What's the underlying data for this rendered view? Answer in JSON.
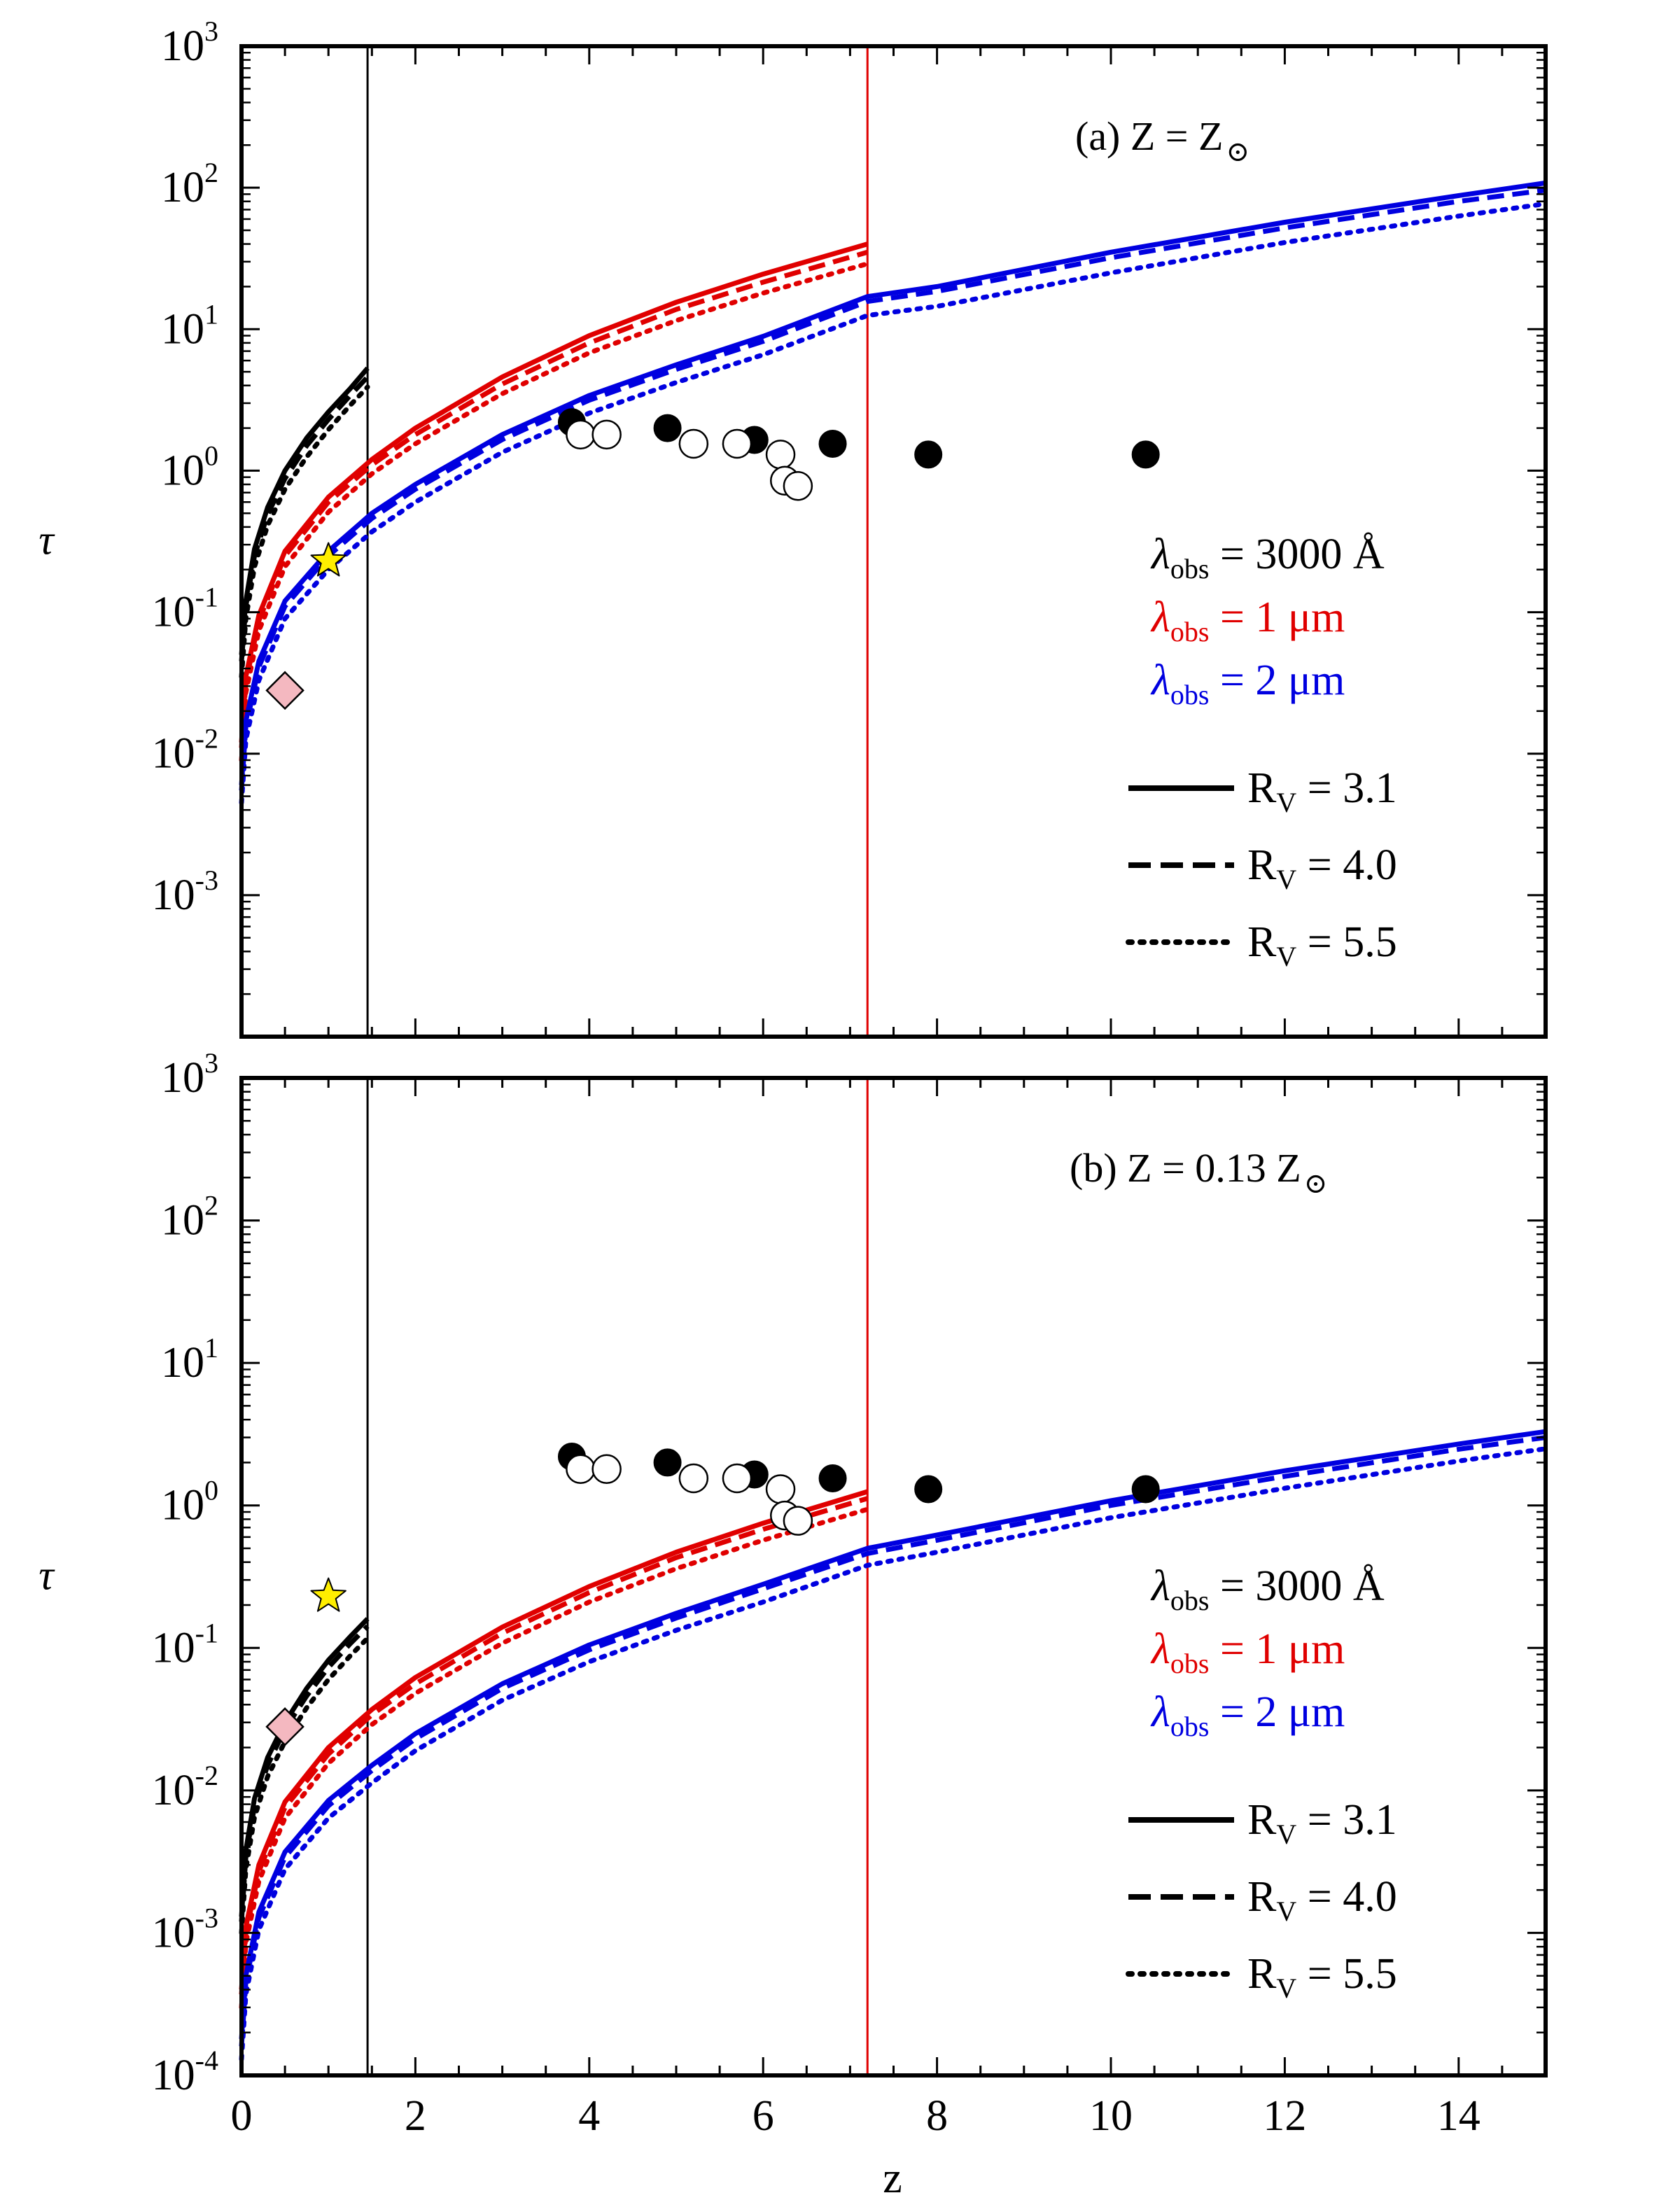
{
  "figure": {
    "xlabel": "z",
    "ylabel": "τ",
    "xlim": [
      0,
      15
    ],
    "ylim_top": [
      0.0001,
      1000
    ],
    "ylim_bottom": [
      0.0001,
      1000
    ],
    "x_ticks": [
      "0",
      "2",
      "4",
      "6",
      "8",
      "10",
      "12",
      "14"
    ],
    "y_exponents_top": [
      "-3",
      "-2",
      "-1",
      "0",
      "1",
      "2",
      "3"
    ],
    "y_exponents_bottom": [
      "-4",
      "-3",
      "-2",
      "-1",
      "0",
      "1",
      "2",
      "3"
    ],
    "tick_base": "10",
    "vlines": [
      {
        "x": 1.45,
        "color": "#000000"
      },
      {
        "x": 7.2,
        "color": "#e00000"
      }
    ]
  },
  "legend": {
    "wavelengths": [
      {
        "symbol": "λ",
        "sub": "obs",
        "value": "= 3000 Å",
        "color": "#000000"
      },
      {
        "symbol": "λ",
        "sub": "obs",
        "value": "= 1 μm",
        "color": "#e00000"
      },
      {
        "symbol": "λ",
        "sub": "obs",
        "value": "= 2 μm",
        "color": "#0000e0"
      }
    ],
    "rv": [
      {
        "label": "R",
        "sub": "V",
        "value": "= 3.1",
        "dash": "solid"
      },
      {
        "label": "R",
        "sub": "V",
        "value": "= 4.0",
        "dash": "dashed"
      },
      {
        "label": "R",
        "sub": "V",
        "value": "= 5.5",
        "dash": "dotted"
      }
    ]
  },
  "panels": [
    {
      "id": "a",
      "label_tag": "(a)",
      "label_eq": "Z = Z",
      "sun_symbol": "⊙"
    },
    {
      "id": "b",
      "label_tag": "(b)",
      "label_eq": "Z = 0.13 Z",
      "sun_symbol": "⊙"
    }
  ],
  "chart_data": [
    {
      "type": "line",
      "title": "(a) Z = Z⊙",
      "xlabel": "z",
      "ylabel": "τ",
      "xlim": [
        0,
        15
      ],
      "ylim": [
        0.0001,
        1000
      ],
      "yscale": "log",
      "series": [
        {
          "name": "λobs = 3000 Å, RV = 3.1",
          "color": "#000000",
          "dash": "solid",
          "x": [
            0,
            0.05,
            0.15,
            0.3,
            0.5,
            0.75,
            1.0,
            1.25,
            1.45
          ],
          "y": [
            0.05,
            0.12,
            0.28,
            0.55,
            1.0,
            1.7,
            2.6,
            3.8,
            5.3
          ]
        },
        {
          "name": "λobs = 3000 Å, RV = 4.0",
          "color": "#000000",
          "dash": "dashed",
          "x": [
            0,
            0.05,
            0.15,
            0.3,
            0.5,
            0.75,
            1.0,
            1.25,
            1.45
          ],
          "y": [
            0.045,
            0.11,
            0.25,
            0.49,
            0.88,
            1.5,
            2.3,
            3.4,
            4.6
          ]
        },
        {
          "name": "λobs = 3000 Å, RV = 5.5",
          "color": "#000000",
          "dash": "dotted",
          "x": [
            0,
            0.05,
            0.15,
            0.3,
            0.5,
            0.75,
            1.0,
            1.25,
            1.45
          ],
          "y": [
            0.035,
            0.09,
            0.21,
            0.41,
            0.74,
            1.25,
            1.95,
            2.9,
            3.9
          ]
        },
        {
          "name": "λobs = 1 μm, RV = 3.1",
          "color": "#e00000",
          "dash": "solid",
          "x": [
            0,
            0.05,
            0.2,
            0.5,
            1.0,
            1.5,
            2.0,
            3.0,
            4.0,
            5.0,
            6.0,
            7.2
          ],
          "y": [
            0.012,
            0.035,
            0.095,
            0.27,
            0.65,
            1.2,
            2.0,
            4.6,
            9.0,
            15.5,
            24.5,
            40
          ]
        },
        {
          "name": "λobs = 1 μm, RV = 4.0",
          "color": "#e00000",
          "dash": "dashed",
          "x": [
            0,
            0.05,
            0.2,
            0.5,
            1.0,
            1.5,
            2.0,
            3.0,
            4.0,
            5.0,
            6.0,
            7.2
          ],
          "y": [
            0.011,
            0.032,
            0.087,
            0.25,
            0.6,
            1.1,
            1.8,
            4.1,
            8.0,
            13.8,
            21.5,
            35
          ]
        },
        {
          "name": "λobs = 1 μm, RV = 5.5",
          "color": "#e00000",
          "dash": "dotted",
          "x": [
            0,
            0.05,
            0.2,
            0.5,
            1.0,
            1.5,
            2.0,
            3.0,
            4.0,
            5.0,
            6.0,
            7.2
          ],
          "y": [
            0.009,
            0.027,
            0.074,
            0.21,
            0.51,
            0.95,
            1.55,
            3.5,
            6.8,
            11.5,
            18.0,
            29
          ]
        },
        {
          "name": "λobs = 2 μm, RV = 3.1",
          "color": "#0000e0",
          "dash": "solid",
          "x": [
            0,
            0.05,
            0.2,
            0.5,
            1.0,
            1.5,
            2.0,
            3.0,
            4.0,
            5.0,
            6.0,
            7.2,
            8.0,
            10.0,
            12.0,
            14.0,
            15.0
          ],
          "y": [
            0.006,
            0.017,
            0.045,
            0.12,
            0.27,
            0.5,
            0.8,
            1.8,
            3.4,
            5.6,
            8.9,
            17,
            20,
            35,
            57,
            88,
            108
          ]
        },
        {
          "name": "λobs = 2 μm, RV = 4.0",
          "color": "#0000e0",
          "dash": "dashed",
          "x": [
            0,
            0.05,
            0.2,
            0.5,
            1.0,
            1.5,
            2.0,
            3.0,
            4.0,
            5.0,
            6.0,
            7.2,
            8.0,
            10.0,
            12.0,
            14.0,
            15.0
          ],
          "y": [
            0.0055,
            0.0155,
            0.041,
            0.11,
            0.25,
            0.46,
            0.74,
            1.66,
            3.15,
            5.2,
            8.2,
            15.7,
            18.5,
            32,
            52,
            80,
            96
          ]
        },
        {
          "name": "λobs = 2 μm, RV = 5.5",
          "color": "#0000e0",
          "dash": "dotted",
          "x": [
            0,
            0.05,
            0.2,
            0.5,
            1.0,
            1.5,
            2.0,
            3.0,
            4.0,
            5.0,
            6.0,
            7.2,
            8.0,
            10.0,
            12.0,
            14.0,
            15.0
          ],
          "y": [
            0.0045,
            0.0125,
            0.033,
            0.09,
            0.2,
            0.37,
            0.6,
            1.35,
            2.55,
            4.2,
            6.6,
            12.5,
            14.5,
            25,
            41,
            63,
            77
          ]
        }
      ],
      "points": {
        "filled_circles": [
          {
            "x": 3.8,
            "y": 2.2
          },
          {
            "x": 4.9,
            "y": 2.0
          },
          {
            "x": 5.9,
            "y": 1.65
          },
          {
            "x": 6.8,
            "y": 1.55
          },
          {
            "x": 7.9,
            "y": 1.3
          },
          {
            "x": 10.4,
            "y": 1.3
          }
        ],
        "open_circles": [
          {
            "x": 3.9,
            "y": 1.8
          },
          {
            "x": 4.2,
            "y": 1.8
          },
          {
            "x": 5.2,
            "y": 1.55
          },
          {
            "x": 5.7,
            "y": 1.55
          },
          {
            "x": 6.2,
            "y": 1.3
          },
          {
            "x": 6.25,
            "y": 0.85
          },
          {
            "x": 6.4,
            "y": 0.78
          }
        ],
        "star": {
          "x": 1.0,
          "y": 0.23,
          "color": "#ffee00"
        },
        "diamond": {
          "x": 0.5,
          "y": 0.028,
          "color": "#f4b8c0"
        }
      }
    },
    {
      "type": "line",
      "title": "(b) Z = 0.13 Z⊙",
      "xlabel": "z",
      "ylabel": "τ",
      "xlim": [
        0,
        15
      ],
      "ylim": [
        0.0001,
        1000
      ],
      "yscale": "log",
      "series": [
        {
          "name": "λobs = 3000 Å, RV = 3.1",
          "color": "#000000",
          "dash": "solid",
          "x": [
            0,
            0.05,
            0.15,
            0.3,
            0.5,
            0.75,
            1.0,
            1.25,
            1.45
          ],
          "y": [
            0.0013,
            0.0038,
            0.0088,
            0.017,
            0.03,
            0.052,
            0.082,
            0.12,
            0.16
          ]
        },
        {
          "name": "λobs = 3000 Å, RV = 4.0",
          "color": "#000000",
          "dash": "dashed",
          "x": [
            0,
            0.05,
            0.15,
            0.3,
            0.5,
            0.75,
            1.0,
            1.25,
            1.45
          ],
          "y": [
            0.0012,
            0.0034,
            0.0078,
            0.015,
            0.027,
            0.046,
            0.073,
            0.107,
            0.142
          ]
        },
        {
          "name": "λobs = 3000 Å, RV = 5.5",
          "color": "#000000",
          "dash": "dotted",
          "x": [
            0,
            0.05,
            0.15,
            0.3,
            0.5,
            0.75,
            1.0,
            1.25,
            1.45
          ],
          "y": [
            0.001,
            0.0028,
            0.0065,
            0.0125,
            0.022,
            0.038,
            0.06,
            0.088,
            0.117
          ]
        },
        {
          "name": "λobs = 1 μm, RV = 3.1",
          "color": "#e00000",
          "dash": "solid",
          "x": [
            0,
            0.05,
            0.2,
            0.5,
            1.0,
            1.5,
            2.0,
            3.0,
            4.0,
            5.0,
            6.0,
            7.2
          ],
          "y": [
            0.0004,
            0.0011,
            0.003,
            0.0083,
            0.02,
            0.037,
            0.062,
            0.14,
            0.27,
            0.47,
            0.75,
            1.25
          ]
        },
        {
          "name": "λobs = 1 μm, RV = 4.0",
          "color": "#e00000",
          "dash": "dashed",
          "x": [
            0,
            0.05,
            0.2,
            0.5,
            1.0,
            1.5,
            2.0,
            3.0,
            4.0,
            5.0,
            6.0,
            7.2
          ],
          "y": [
            0.00037,
            0.001,
            0.0027,
            0.0076,
            0.018,
            0.034,
            0.056,
            0.127,
            0.245,
            0.43,
            0.68,
            1.12
          ]
        },
        {
          "name": "λobs = 1 μm, RV = 5.5",
          "color": "#e00000",
          "dash": "dotted",
          "x": [
            0,
            0.05,
            0.2,
            0.5,
            1.0,
            1.5,
            2.0,
            3.0,
            4.0,
            5.0,
            6.0,
            7.2
          ],
          "y": [
            0.0003,
            0.00085,
            0.0023,
            0.0064,
            0.0155,
            0.029,
            0.048,
            0.108,
            0.21,
            0.36,
            0.57,
            0.94
          ]
        },
        {
          "name": "λobs = 2 μm, RV = 3.1",
          "color": "#0000e0",
          "dash": "solid",
          "x": [
            0,
            0.05,
            0.2,
            0.5,
            1.0,
            1.5,
            2.0,
            3.0,
            4.0,
            5.0,
            6.0,
            7.2,
            8.0,
            10.0,
            12.0,
            14.0,
            15.0
          ],
          "y": [
            0.00018,
            0.0005,
            0.0014,
            0.0037,
            0.0085,
            0.015,
            0.025,
            0.056,
            0.105,
            0.175,
            0.28,
            0.5,
            0.62,
            1.08,
            1.75,
            2.7,
            3.3
          ]
        },
        {
          "name": "λobs = 2 μm, RV = 4.0",
          "color": "#0000e0",
          "dash": "dashed",
          "x": [
            0,
            0.05,
            0.2,
            0.5,
            1.0,
            1.5,
            2.0,
            3.0,
            4.0,
            5.0,
            6.0,
            7.2,
            8.0,
            10.0,
            12.0,
            14.0,
            15.0
          ],
          "y": [
            0.00016,
            0.00045,
            0.00128,
            0.0034,
            0.0078,
            0.0138,
            0.023,
            0.052,
            0.097,
            0.162,
            0.26,
            0.46,
            0.57,
            1.0,
            1.6,
            2.48,
            3.0
          ]
        },
        {
          "name": "λobs = 2 μm, RV = 5.5",
          "color": "#0000e0",
          "dash": "dotted",
          "x": [
            0,
            0.05,
            0.2,
            0.5,
            1.0,
            1.5,
            2.0,
            3.0,
            4.0,
            5.0,
            6.0,
            7.2,
            8.0,
            10.0,
            12.0,
            14.0,
            15.0
          ],
          "y": [
            0.00013,
            0.00037,
            0.00105,
            0.0028,
            0.0064,
            0.0113,
            0.019,
            0.043,
            0.08,
            0.133,
            0.21,
            0.38,
            0.47,
            0.82,
            1.32,
            2.05,
            2.5
          ]
        }
      ],
      "points": {
        "filled_circles": [
          {
            "x": 3.8,
            "y": 2.2
          },
          {
            "x": 4.9,
            "y": 2.0
          },
          {
            "x": 5.9,
            "y": 1.65
          },
          {
            "x": 6.8,
            "y": 1.55
          },
          {
            "x": 7.9,
            "y": 1.3
          },
          {
            "x": 10.4,
            "y": 1.3
          }
        ],
        "open_circles": [
          {
            "x": 3.9,
            "y": 1.8
          },
          {
            "x": 4.2,
            "y": 1.8
          },
          {
            "x": 5.2,
            "y": 1.55
          },
          {
            "x": 5.7,
            "y": 1.55
          },
          {
            "x": 6.2,
            "y": 1.3
          },
          {
            "x": 6.25,
            "y": 0.85
          },
          {
            "x": 6.4,
            "y": 0.78
          }
        ],
        "star": {
          "x": 1.0,
          "y": 0.23,
          "color": "#ffee00"
        },
        "diamond": {
          "x": 0.5,
          "y": 0.028,
          "color": "#f4b8c0"
        }
      }
    }
  ]
}
